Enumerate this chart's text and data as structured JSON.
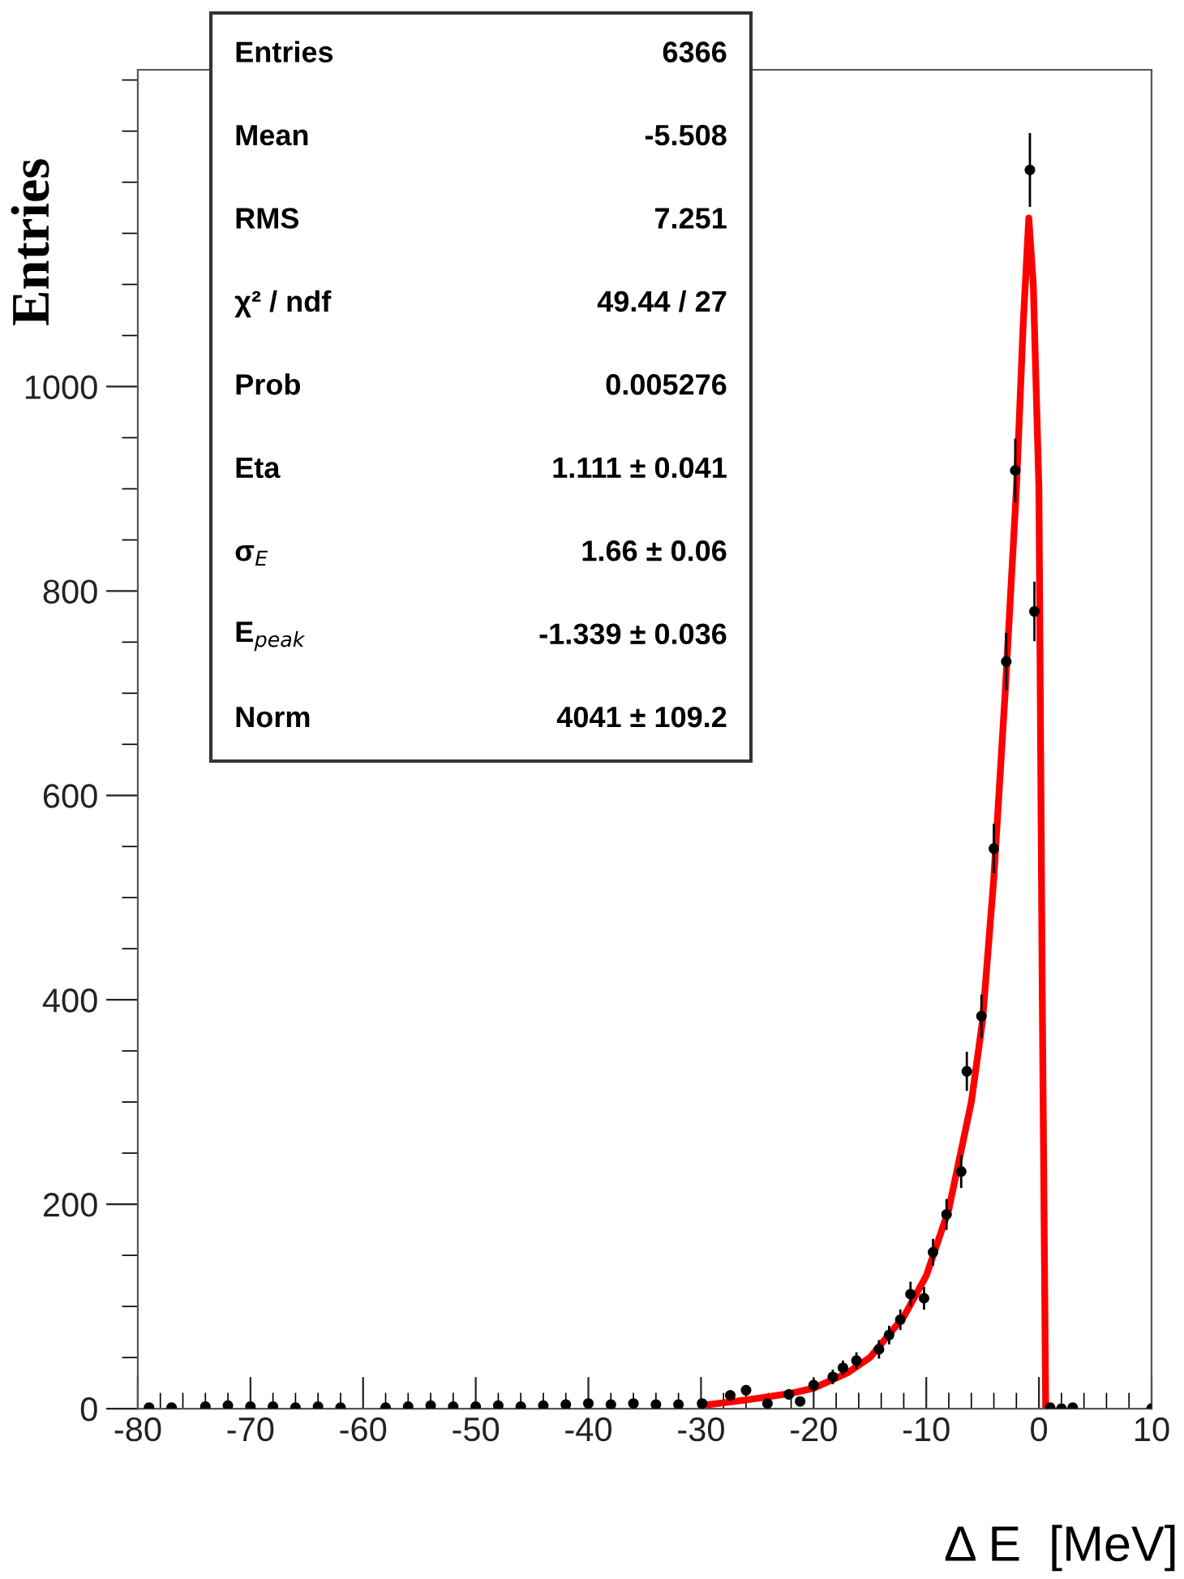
{
  "chart_data": {
    "type": "scatter",
    "xlabel": "Δ E  [MeV]",
    "ylabel": "Entries",
    "xlim": [
      -80,
      10
    ],
    "xticks": [
      -80,
      -70,
      -60,
      -50,
      -40,
      -30,
      -20,
      -10,
      0,
      10
    ],
    "ylim": [
      0,
      1310
    ],
    "yticks": [
      0,
      200,
      400,
      600,
      800,
      1000
    ],
    "grid": false,
    "legend": false,
    "series": [
      {
        "color": "#000000",
        "marker": "circle",
        "x": [
          -79,
          -77,
          -74,
          -72,
          -70,
          -68,
          -66,
          -64,
          -62,
          -58,
          -56,
          -54,
          -52,
          -50,
          -48,
          -46,
          -44,
          -42,
          -40,
          -38,
          -36,
          -34,
          -32,
          -29.9,
          -27.4,
          -26.0,
          -24.1,
          -22.2,
          -21.2,
          -20.0,
          -18.3,
          -17.4,
          -16.2,
          -14.2,
          -13.3,
          -12.3,
          -11.4,
          -10.2,
          -9.4,
          -8.2,
          -6.9,
          -6.4,
          -5.1,
          -4.0,
          -2.9,
          -2.1,
          -0.8,
          -0.4,
          1,
          2,
          3,
          10
        ],
        "values": [
          1,
          1,
          2,
          3,
          2,
          2,
          1,
          2,
          1,
          1,
          2,
          3,
          2,
          2,
          3,
          2,
          3,
          4,
          5,
          4,
          5,
          4,
          4,
          5,
          13,
          18,
          5,
          14,
          7,
          23,
          31,
          40,
          47,
          58,
          72,
          87,
          112,
          108,
          153,
          190,
          232,
          330,
          384,
          548,
          731,
          918,
          1212,
          780,
          1,
          0,
          1,
          0
        ],
        "errors": [
          null,
          null,
          null,
          null,
          null,
          null,
          null,
          null,
          null,
          null,
          null,
          null,
          null,
          null,
          null,
          null,
          null,
          null,
          null,
          null,
          null,
          null,
          null,
          null,
          4,
          4,
          null,
          4,
          3,
          5,
          6,
          6,
          7,
          8,
          8,
          9,
          11,
          10,
          12,
          14,
          15,
          18,
          20,
          23,
          27,
          30,
          35,
          28,
          null,
          null,
          null,
          null
        ]
      },
      {
        "type": "line",
        "color": "#ff0000",
        "marker": "none",
        "line_style": "solid",
        "x": [
          -30,
          -27,
          -25,
          -22,
          -20,
          -17,
          -15,
          -12,
          -10,
          -8,
          -6,
          -5,
          -4,
          -3,
          -2,
          -1.4,
          -0.9,
          -0.5,
          0.0,
          0.3,
          0.6
        ],
        "values": [
          3,
          7,
          10,
          15,
          20,
          35,
          50,
          90,
          130,
          195,
          300,
          380,
          520,
          700,
          900,
          1060,
          1165,
          1100,
          900,
          400,
          0
        ]
      }
    ],
    "annotations": [
      "Entries",
      "6366",
      "Mean",
      "-5.508",
      "RMS",
      "7.251",
      "χ² / ndf",
      "49.44 / 27",
      "Prob",
      "0.005276",
      "Eta",
      "1.111 ± 0.041",
      "σ$_{E}$",
      "1.66 ± 0.06",
      "E$_{peak}$",
      "-1.339 ± 0.036",
      "Norm",
      "4041 ± 109.2"
    ]
  }
}
